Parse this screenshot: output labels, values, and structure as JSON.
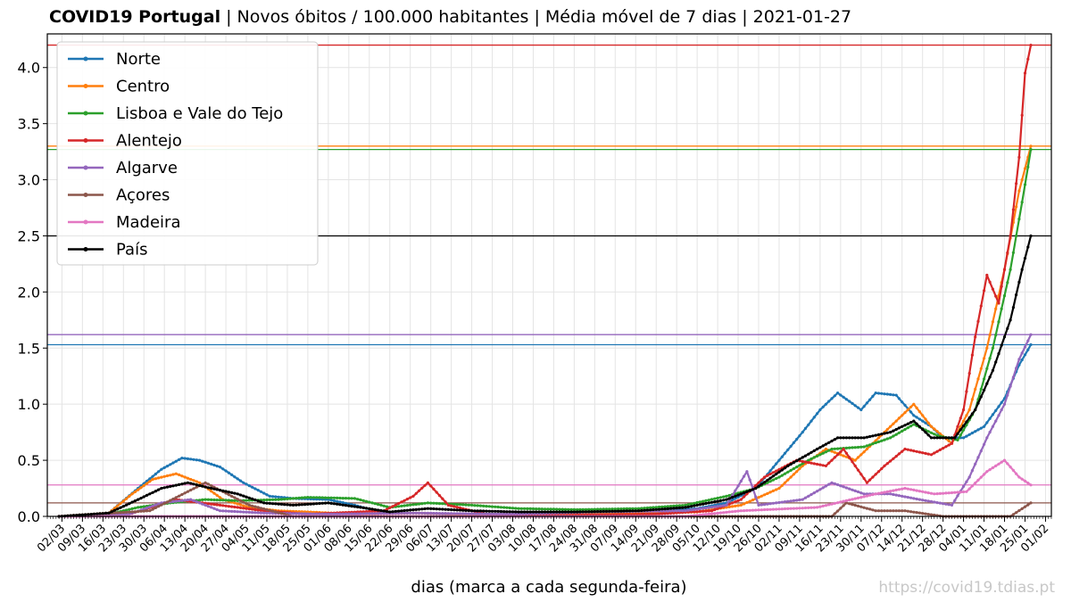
{
  "title": {
    "bold": "COVID19 Portugal",
    "rest": " | Novos óbitos / 100.000 habitantes | Média móvel de 7 dias | 2021-01-27"
  },
  "watermark": "https://covid19.tdias.pt",
  "chart_data": {
    "type": "line",
    "xlabel": "dias (marca a cada segunda-feira)",
    "ylabel": "",
    "ylim": [
      0,
      4.3
    ],
    "yticks": [
      "0.0",
      "0.5",
      "1.0",
      "1.5",
      "2.0",
      "2.5",
      "3.0",
      "3.5",
      "4.0"
    ],
    "x_start": "2020-02-26",
    "x_end": "2021-02-03",
    "grid": true,
    "legend_position": "top-left",
    "x_ticks": [
      "02/03",
      "09/03",
      "16/03",
      "23/03",
      "30/03",
      "06/04",
      "13/04",
      "20/04",
      "27/04",
      "04/05",
      "11/05",
      "18/05",
      "25/05",
      "01/06",
      "08/06",
      "15/06",
      "22/06",
      "29/06",
      "06/07",
      "13/07",
      "20/07",
      "27/07",
      "03/08",
      "10/08",
      "17/08",
      "24/08",
      "31/08",
      "07/09",
      "14/09",
      "21/09",
      "28/09",
      "05/10",
      "12/10",
      "19/10",
      "26/10",
      "02/11",
      "09/11",
      "16/11",
      "23/11",
      "30/11",
      "07/12",
      "14/12",
      "21/12",
      "28/12",
      "04/01",
      "11/01",
      "18/01",
      "25/01",
      "01/02"
    ],
    "series": [
      {
        "name": "Norte",
        "color": "#1f77b4",
        "hline": 1.53,
        "points": [
          [
            "2020-03-01",
            0
          ],
          [
            "2020-03-18",
            0.03
          ],
          [
            "2020-03-28",
            0.25
          ],
          [
            "2020-04-05",
            0.42
          ],
          [
            "2020-04-12",
            0.52
          ],
          [
            "2020-04-18",
            0.5
          ],
          [
            "2020-04-25",
            0.44
          ],
          [
            "2020-05-03",
            0.3
          ],
          [
            "2020-05-12",
            0.18
          ],
          [
            "2020-05-20",
            0.16
          ],
          [
            "2020-06-01",
            0.15
          ],
          [
            "2020-06-10",
            0.1
          ],
          [
            "2020-06-20",
            0.03
          ],
          [
            "2020-07-01",
            0.03
          ],
          [
            "2020-07-15",
            0.02
          ],
          [
            "2020-08-01",
            0.02
          ],
          [
            "2020-08-20",
            0.02
          ],
          [
            "2020-09-10",
            0.03
          ],
          [
            "2020-09-25",
            0.05
          ],
          [
            "2020-10-05",
            0.07
          ],
          [
            "2020-10-15",
            0.12
          ],
          [
            "2020-10-25",
            0.25
          ],
          [
            "2020-11-02",
            0.5
          ],
          [
            "2020-11-10",
            0.75
          ],
          [
            "2020-11-16",
            0.95
          ],
          [
            "2020-11-22",
            1.1
          ],
          [
            "2020-11-30",
            0.95
          ],
          [
            "2020-12-05",
            1.1
          ],
          [
            "2020-12-12",
            1.08
          ],
          [
            "2020-12-18",
            0.9
          ],
          [
            "2020-12-24",
            0.8
          ],
          [
            "2020-12-28",
            0.7
          ],
          [
            "2021-01-04",
            0.7
          ],
          [
            "2021-01-11",
            0.8
          ],
          [
            "2021-01-18",
            1.05
          ],
          [
            "2021-01-23",
            1.35
          ],
          [
            "2021-01-27",
            1.53
          ]
        ]
      },
      {
        "name": "Centro",
        "color": "#ff7f0e",
        "hline": 3.3,
        "points": [
          [
            "2020-03-01",
            0
          ],
          [
            "2020-03-18",
            0.03
          ],
          [
            "2020-03-26",
            0.2
          ],
          [
            "2020-04-02",
            0.33
          ],
          [
            "2020-04-10",
            0.38
          ],
          [
            "2020-04-18",
            0.3
          ],
          [
            "2020-04-26",
            0.15
          ],
          [
            "2020-05-05",
            0.08
          ],
          [
            "2020-05-15",
            0.05
          ],
          [
            "2020-05-25",
            0.04
          ],
          [
            "2020-06-10",
            0.02
          ],
          [
            "2020-07-01",
            0.03
          ],
          [
            "2020-07-20",
            0.02
          ],
          [
            "2020-08-10",
            0.02
          ],
          [
            "2020-09-01",
            0.02
          ],
          [
            "2020-09-20",
            0.03
          ],
          [
            "2020-10-05",
            0.04
          ],
          [
            "2020-10-20",
            0.1
          ],
          [
            "2020-11-02",
            0.25
          ],
          [
            "2020-11-10",
            0.45
          ],
          [
            "2020-11-18",
            0.6
          ],
          [
            "2020-11-28",
            0.5
          ],
          [
            "2020-12-06",
            0.7
          ],
          [
            "2020-12-12",
            0.85
          ],
          [
            "2020-12-18",
            1.0
          ],
          [
            "2020-12-24",
            0.8
          ],
          [
            "2020-12-31",
            0.65
          ],
          [
            "2021-01-06",
            0.95
          ],
          [
            "2021-01-12",
            1.5
          ],
          [
            "2021-01-18",
            2.2
          ],
          [
            "2021-01-23",
            2.9
          ],
          [
            "2021-01-27",
            3.3
          ]
        ]
      },
      {
        "name": "Lisboa e Vale do Tejo",
        "color": "#2ca02c",
        "hline": 3.27,
        "points": [
          [
            "2020-03-01",
            0
          ],
          [
            "2020-03-18",
            0.02
          ],
          [
            "2020-03-28",
            0.08
          ],
          [
            "2020-04-08",
            0.12
          ],
          [
            "2020-04-20",
            0.15
          ],
          [
            "2020-05-01",
            0.14
          ],
          [
            "2020-05-15",
            0.15
          ],
          [
            "2020-05-25",
            0.17
          ],
          [
            "2020-06-10",
            0.16
          ],
          [
            "2020-06-22",
            0.08
          ],
          [
            "2020-07-05",
            0.12
          ],
          [
            "2020-07-20",
            0.1
          ],
          [
            "2020-08-05",
            0.07
          ],
          [
            "2020-08-25",
            0.06
          ],
          [
            "2020-09-15",
            0.07
          ],
          [
            "2020-10-01",
            0.1
          ],
          [
            "2020-10-15",
            0.18
          ],
          [
            "2020-10-25",
            0.25
          ],
          [
            "2020-11-02",
            0.35
          ],
          [
            "2020-11-12",
            0.5
          ],
          [
            "2020-11-20",
            0.6
          ],
          [
            "2020-12-01",
            0.62
          ],
          [
            "2020-12-10",
            0.7
          ],
          [
            "2020-12-18",
            0.82
          ],
          [
            "2020-12-26",
            0.72
          ],
          [
            "2021-01-02",
            0.68
          ],
          [
            "2021-01-08",
            0.95
          ],
          [
            "2021-01-14",
            1.5
          ],
          [
            "2021-01-20",
            2.2
          ],
          [
            "2021-01-24",
            2.8
          ],
          [
            "2021-01-27",
            3.27
          ]
        ]
      },
      {
        "name": "Alentejo",
        "color": "#d62728",
        "hline": 4.2,
        "points": [
          [
            "2020-03-01",
            0
          ],
          [
            "2020-03-25",
            0.02
          ],
          [
            "2020-04-10",
            0.15
          ],
          [
            "2020-04-25",
            0.1
          ],
          [
            "2020-05-10",
            0.05
          ],
          [
            "2020-05-25",
            0.02
          ],
          [
            "2020-06-20",
            0.05
          ],
          [
            "2020-06-30",
            0.18
          ],
          [
            "2020-07-05",
            0.3
          ],
          [
            "2020-07-12",
            0.1
          ],
          [
            "2020-07-25",
            0.02
          ],
          [
            "2020-08-20",
            0.01
          ],
          [
            "2020-09-20",
            0.02
          ],
          [
            "2020-10-10",
            0.05
          ],
          [
            "2020-10-20",
            0.15
          ],
          [
            "2020-10-28",
            0.35
          ],
          [
            "2020-11-08",
            0.5
          ],
          [
            "2020-11-18",
            0.45
          ],
          [
            "2020-11-24",
            0.6
          ],
          [
            "2020-12-02",
            0.3
          ],
          [
            "2020-12-08",
            0.45
          ],
          [
            "2020-12-15",
            0.6
          ],
          [
            "2020-12-24",
            0.55
          ],
          [
            "2020-12-31",
            0.65
          ],
          [
            "2021-01-04",
            0.95
          ],
          [
            "2021-01-08",
            1.6
          ],
          [
            "2021-01-12",
            2.15
          ],
          [
            "2021-01-16",
            1.9
          ],
          [
            "2021-01-20",
            2.5
          ],
          [
            "2021-01-23",
            3.2
          ],
          [
            "2021-01-25",
            3.95
          ],
          [
            "2021-01-27",
            4.2
          ]
        ]
      },
      {
        "name": "Algarve",
        "color": "#9467bd",
        "hline": 1.62,
        "points": [
          [
            "2020-03-01",
            0
          ],
          [
            "2020-03-25",
            0.02
          ],
          [
            "2020-04-05",
            0.12
          ],
          [
            "2020-04-15",
            0.15
          ],
          [
            "2020-04-25",
            0.05
          ],
          [
            "2020-05-10",
            0.03
          ],
          [
            "2020-06-01",
            0.02
          ],
          [
            "2020-07-01",
            0.03
          ],
          [
            "2020-08-01",
            0.02
          ],
          [
            "2020-09-01",
            0.04
          ],
          [
            "2020-10-01",
            0.05
          ],
          [
            "2020-10-15",
            0.1
          ],
          [
            "2020-10-22",
            0.4
          ],
          [
            "2020-10-26",
            0.1
          ],
          [
            "2020-11-10",
            0.15
          ],
          [
            "2020-11-20",
            0.3
          ],
          [
            "2020-12-01",
            0.2
          ],
          [
            "2020-12-10",
            0.2
          ],
          [
            "2020-12-20",
            0.15
          ],
          [
            "2020-12-31",
            0.1
          ],
          [
            "2021-01-06",
            0.35
          ],
          [
            "2021-01-12",
            0.7
          ],
          [
            "2021-01-18",
            1.0
          ],
          [
            "2021-01-23",
            1.4
          ],
          [
            "2021-01-27",
            1.62
          ]
        ]
      },
      {
        "name": "Açores",
        "color": "#8c564b",
        "hline": 0.12,
        "points": [
          [
            "2020-03-01",
            0
          ],
          [
            "2020-04-01",
            0.05
          ],
          [
            "2020-04-20",
            0.3
          ],
          [
            "2020-05-05",
            0.1
          ],
          [
            "2020-05-20",
            0.0
          ],
          [
            "2020-07-01",
            0.0
          ],
          [
            "2020-08-01",
            0.0
          ],
          [
            "2020-09-01",
            0.0
          ],
          [
            "2020-10-01",
            0.0
          ],
          [
            "2020-11-20",
            0.0
          ],
          [
            "2020-11-25",
            0.12
          ],
          [
            "2020-12-05",
            0.05
          ],
          [
            "2020-12-15",
            0.05
          ],
          [
            "2020-12-28",
            0.0
          ],
          [
            "2021-01-20",
            0.0
          ],
          [
            "2021-01-27",
            0.12
          ]
        ]
      },
      {
        "name": "Madeira",
        "color": "#e377c2",
        "hline": 0.28,
        "points": [
          [
            "2020-03-01",
            0
          ],
          [
            "2020-06-01",
            0
          ],
          [
            "2020-08-01",
            0
          ],
          [
            "2020-10-01",
            0
          ],
          [
            "2020-10-20",
            0.05
          ],
          [
            "2020-11-15",
            0.08
          ],
          [
            "2020-12-05",
            0.2
          ],
          [
            "2020-12-15",
            0.25
          ],
          [
            "2020-12-25",
            0.2
          ],
          [
            "2021-01-05",
            0.22
          ],
          [
            "2021-01-12",
            0.4
          ],
          [
            "2021-01-18",
            0.5
          ],
          [
            "2021-01-23",
            0.35
          ],
          [
            "2021-01-27",
            0.28
          ]
        ]
      },
      {
        "name": "País",
        "color": "#000000",
        "hline": 2.5,
        "points": [
          [
            "2020-03-01",
            0
          ],
          [
            "2020-03-18",
            0.03
          ],
          [
            "2020-03-28",
            0.15
          ],
          [
            "2020-04-05",
            0.25
          ],
          [
            "2020-04-14",
            0.3
          ],
          [
            "2020-04-22",
            0.25
          ],
          [
            "2020-05-01",
            0.2
          ],
          [
            "2020-05-10",
            0.12
          ],
          [
            "2020-05-20",
            0.1
          ],
          [
            "2020-06-01",
            0.12
          ],
          [
            "2020-06-12",
            0.08
          ],
          [
            "2020-06-22",
            0.04
          ],
          [
            "2020-07-05",
            0.07
          ],
          [
            "2020-07-20",
            0.05
          ],
          [
            "2020-08-05",
            0.04
          ],
          [
            "2020-08-25",
            0.04
          ],
          [
            "2020-09-15",
            0.05
          ],
          [
            "2020-10-01",
            0.08
          ],
          [
            "2020-10-15",
            0.15
          ],
          [
            "2020-10-25",
            0.25
          ],
          [
            "2020-11-05",
            0.45
          ],
          [
            "2020-11-15",
            0.6
          ],
          [
            "2020-11-22",
            0.7
          ],
          [
            "2020-12-01",
            0.7
          ],
          [
            "2020-12-10",
            0.75
          ],
          [
            "2020-12-18",
            0.85
          ],
          [
            "2020-12-24",
            0.7
          ],
          [
            "2021-01-01",
            0.7
          ],
          [
            "2021-01-08",
            0.95
          ],
          [
            "2021-01-14",
            1.3
          ],
          [
            "2021-01-20",
            1.75
          ],
          [
            "2021-01-24",
            2.2
          ],
          [
            "2021-01-27",
            2.5
          ]
        ]
      }
    ]
  }
}
